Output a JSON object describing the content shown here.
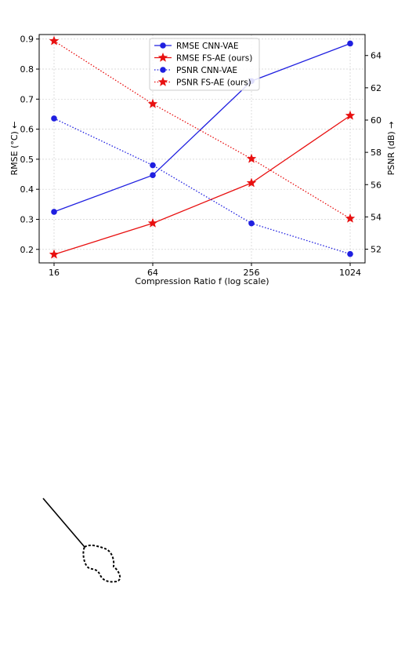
{
  "chart_data": {
    "type": "line",
    "x_scale": "log2",
    "categories": [
      "16",
      "64",
      "256",
      "1024"
    ],
    "x": [
      16,
      64,
      256,
      1024
    ],
    "xlabel": "Compression Ratio f (log scale)",
    "ylabel_left": "RMSE (°C) ←",
    "ylabel_right": "PSNR (dB) →",
    "ylim_left": [
      0.155,
      0.915
    ],
    "yticks_left": [
      0.2,
      0.3,
      0.4,
      0.5,
      0.6,
      0.7,
      0.8,
      0.9
    ],
    "ytick_labels_left": [
      "0.2",
      "0.3",
      "0.4",
      "0.5",
      "0.6",
      "0.7",
      "0.8",
      "0.9"
    ],
    "ylim_right": [
      51.15,
      65.3
    ],
    "yticks_right": [
      52,
      54,
      56,
      58,
      60,
      62,
      64
    ],
    "ytick_labels_right": [
      "52",
      "54",
      "56",
      "58",
      "60",
      "62",
      "64"
    ],
    "grid": true,
    "legend_position": "top-center",
    "series": [
      {
        "name": "RMSE CNN-VAE",
        "axis": "left",
        "color": "#1f1fe0",
        "style": "solid",
        "marker": "circle",
        "values": [
          0.325,
          0.447,
          0.76,
          0.885
        ]
      },
      {
        "name": "RMSE FS-AE (ours)",
        "axis": "left",
        "color": "#e81010",
        "style": "solid",
        "marker": "star",
        "values": [
          0.183,
          0.287,
          0.421,
          0.645
        ]
      },
      {
        "name": "PSNR CNN-VAE",
        "axis": "right",
        "color": "#1f1fe0",
        "style": "dotted",
        "marker": "circle",
        "values": [
          60.1,
          57.2,
          53.6,
          51.7
        ]
      },
      {
        "name": "PSNR FS-AE (ours)",
        "axis": "right",
        "color": "#e81010",
        "style": "dotted",
        "marker": "star",
        "values": [
          64.9,
          61.0,
          57.6,
          53.9
        ]
      }
    ]
  },
  "annotation": {
    "description_icon": "dashed-cloud-pointer",
    "stroke_color": "#000000"
  }
}
